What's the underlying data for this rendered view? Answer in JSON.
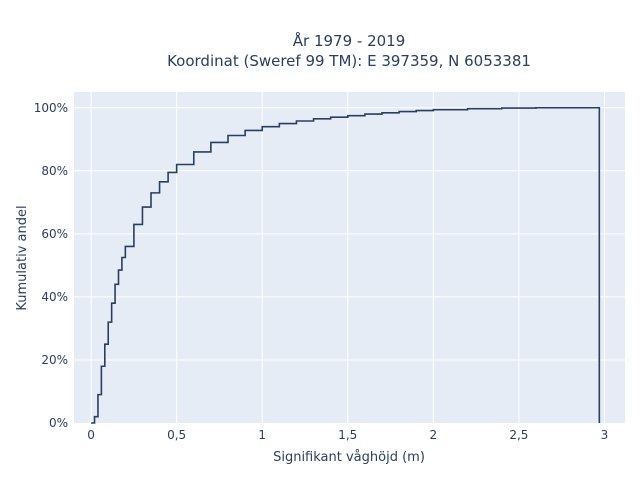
{
  "chart": {
    "title_line1": "År 1979 - 2019",
    "title_line2": "Koordinat (Sweref 99 TM): E 397359, N 6053381",
    "xlabel": "Signifikant våghöjd (m)",
    "ylabel": "Kumulativ andel"
  },
  "chart_data": {
    "type": "line",
    "title": "År 1979 - 2019 / Koordinat (Sweref 99 TM): E 397359, N 6053381",
    "xlabel": "Signifikant våghöjd (m)",
    "ylabel": "Kumulativ andel",
    "xlim": [
      -0.1,
      3.12
    ],
    "ylim": [
      0,
      1.05
    ],
    "x_ticks": [
      0,
      0.5,
      1,
      1.5,
      2,
      2.5,
      3
    ],
    "x_tick_labels": [
      "0",
      "0,5",
      "1",
      "1,5",
      "2",
      "2,5",
      "3"
    ],
    "y_ticks": [
      0,
      0.2,
      0.4,
      0.6,
      0.8,
      1.0
    ],
    "y_tick_labels": [
      "0%",
      "20%",
      "40%",
      "60%",
      "80%",
      "100%"
    ],
    "grid": true,
    "step": true,
    "series": [
      {
        "x": [
          0.0,
          0.02,
          0.04,
          0.06,
          0.08,
          0.1,
          0.12,
          0.14,
          0.16,
          0.18,
          0.2,
          0.25,
          0.3,
          0.35,
          0.4,
          0.45,
          0.5,
          0.6,
          0.7,
          0.8,
          0.9,
          1.0,
          1.1,
          1.2,
          1.3,
          1.4,
          1.5,
          1.6,
          1.7,
          1.8,
          1.9,
          2.0,
          2.2,
          2.4,
          2.6,
          2.8,
          2.97,
          2.97
        ],
        "y": [
          0.0,
          0.02,
          0.09,
          0.18,
          0.25,
          0.32,
          0.38,
          0.44,
          0.485,
          0.525,
          0.56,
          0.63,
          0.685,
          0.73,
          0.765,
          0.795,
          0.82,
          0.86,
          0.89,
          0.912,
          0.928,
          0.94,
          0.95,
          0.958,
          0.965,
          0.97,
          0.975,
          0.98,
          0.984,
          0.988,
          0.991,
          0.994,
          0.997,
          0.999,
          1.0,
          1.0,
          1.0,
          0.0
        ]
      }
    ],
    "colors": {
      "line": "#2a3f5f",
      "plot_bg": "#e5ecf6",
      "grid": "#ffffff"
    }
  }
}
